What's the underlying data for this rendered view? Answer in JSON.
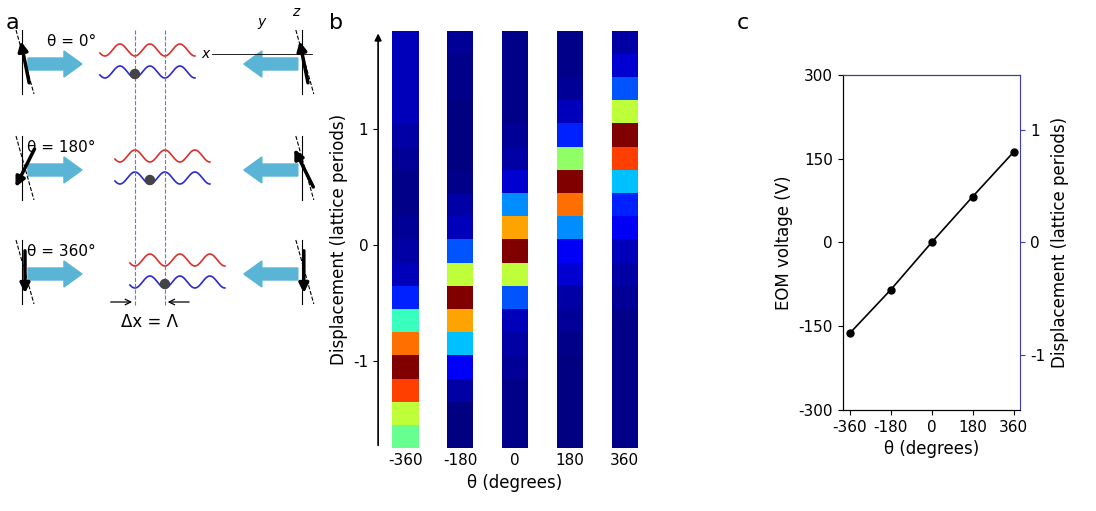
{
  "diagram": {
    "panel_label": "a",
    "rows": [
      "θ = 0°",
      "θ = 180°",
      "θ = 360°"
    ],
    "axis_names": [
      "x",
      "y",
      "z"
    ],
    "shift_label": "Δx = Λ"
  },
  "chart_data": [
    {
      "panel_label": "b",
      "type": "heatmap",
      "x_label": "θ (degrees)",
      "y_label": "Displacement (lattice periods)",
      "categories": [
        "-360",
        "-180",
        "0",
        "180",
        "360"
      ],
      "y_edges": [
        -1.75,
        -1.55,
        -1.35,
        -1.15,
        -0.95,
        -0.75,
        -0.55,
        -0.35,
        -0.15,
        0.05,
        0.25,
        0.45,
        0.65,
        0.85,
        1.05,
        1.25,
        1.45,
        1.65,
        1.85
      ],
      "cells": [
        [
          0.5,
          0.6,
          0.85,
          1.0,
          0.8,
          0.45,
          0.2,
          0.1,
          0.08,
          0.07,
          0.06,
          0.06,
          0.07,
          0.08,
          0.1,
          0.1,
          0.1,
          0.1
        ],
        [
          0.05,
          0.05,
          0.08,
          0.15,
          0.35,
          0.75,
          1.0,
          0.6,
          0.25,
          0.1,
          0.08,
          0.06,
          0.05,
          0.05,
          0.05,
          0.06,
          0.06,
          0.07
        ],
        [
          0.06,
          0.06,
          0.06,
          0.07,
          0.08,
          0.1,
          0.25,
          0.6,
          1.0,
          0.75,
          0.3,
          0.12,
          0.08,
          0.07,
          0.06,
          0.06,
          0.06,
          0.06
        ],
        [
          0.05,
          0.05,
          0.05,
          0.05,
          0.06,
          0.07,
          0.08,
          0.12,
          0.15,
          0.3,
          0.8,
          1.0,
          0.55,
          0.2,
          0.1,
          0.07,
          0.06,
          0.06
        ],
        [
          0.06,
          0.06,
          0.06,
          0.06,
          0.06,
          0.06,
          0.07,
          0.08,
          0.1,
          0.15,
          0.2,
          0.35,
          0.85,
          1.0,
          0.6,
          0.25,
          0.12,
          0.08
        ]
      ],
      "ylim": [
        -1.75,
        1.85
      ],
      "yticks": [
        -1,
        0,
        1
      ]
    },
    {
      "panel_label": "c",
      "type": "line",
      "x_label": "θ (degrees)",
      "y_label": "EOM voltage (V)",
      "y2_label": "Displacement (lattice periods)",
      "x": [
        -360,
        -180,
        0,
        180,
        360
      ],
      "series": [
        {
          "values": [
            -163,
            -85,
            0,
            82,
            162
          ],
          "color": "#000000",
          "marker": "o",
          "line_style": "solid"
        }
      ],
      "xlim": [
        -390,
        390
      ],
      "xticks": [
        -360,
        -180,
        0,
        180,
        360
      ],
      "ylim": [
        -300,
        300
      ],
      "yticks": [
        -300,
        -150,
        0,
        150,
        300
      ],
      "y2lim": [
        -1.49,
        1.49
      ],
      "y2ticks": [
        -1,
        0,
        1
      ]
    }
  ]
}
